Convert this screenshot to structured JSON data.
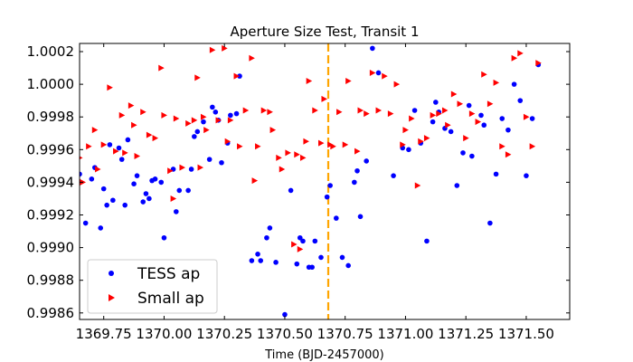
{
  "chart_data": {
    "type": "scatter",
    "title": "Aperture Size Test, Transit 1",
    "xlabel": "Time (BJD-2457000)",
    "ylabel": "",
    "xlim": [
      1369.65,
      1371.68
    ],
    "ylim": [
      0.99856,
      1.00025
    ],
    "grid": false,
    "legend_position": "bottom-left",
    "x_ticks": [
      1369.75,
      1370.0,
      1370.25,
      1370.5,
      1370.75,
      1371.0,
      1371.25,
      1371.5
    ],
    "x_tick_labels": [
      "1369.75",
      "1370.00",
      "1370.25",
      "1370.50",
      "1370.75",
      "1371.00",
      "1371.25",
      "1371.50"
    ],
    "y_ticks": [
      0.9986,
      0.9988,
      0.999,
      0.9992,
      0.9994,
      0.9996,
      0.9998,
      1.0,
      1.0002
    ],
    "y_tick_labels": [
      "0.9986",
      "0.9988",
      "0.9990",
      "0.9992",
      "0.9994",
      "0.9996",
      "0.9998",
      "1.0000",
      "1.0002"
    ],
    "vline": {
      "x": 1370.68,
      "color": "#ffa500",
      "style": "dashed"
    },
    "series": [
      {
        "name": "TESS ap",
        "color": "#0000ff",
        "marker": "circle",
        "points": [
          [
            1369.65,
            0.99945
          ],
          [
            1369.675,
            0.99915
          ],
          [
            1369.7,
            0.99942
          ],
          [
            1369.713,
            0.99949
          ],
          [
            1369.737,
            0.99912
          ],
          [
            1369.75,
            0.99936
          ],
          [
            1369.763,
            0.99926
          ],
          [
            1369.775,
            0.99963
          ],
          [
            1369.788,
            0.99929
          ],
          [
            1369.813,
            0.99961
          ],
          [
            1369.825,
            0.99954
          ],
          [
            1369.838,
            0.99926
          ],
          [
            1369.85,
            0.99966
          ],
          [
            1369.875,
            0.99939
          ],
          [
            1369.888,
            0.99944
          ],
          [
            1369.913,
            0.99928
          ],
          [
            1369.925,
            0.99933
          ],
          [
            1369.938,
            0.9993
          ],
          [
            1369.95,
            0.99941
          ],
          [
            1369.963,
            0.99942
          ],
          [
            1369.988,
            0.9994
          ],
          [
            1370.0,
            0.99906
          ],
          [
            1370.038,
            0.99948
          ],
          [
            1370.05,
            0.99922
          ],
          [
            1370.063,
            0.99935
          ],
          [
            1370.1,
            0.99935
          ],
          [
            1370.113,
            0.99948
          ],
          [
            1370.125,
            0.99968
          ],
          [
            1370.138,
            0.99971
          ],
          [
            1370.163,
            0.99977
          ],
          [
            1370.188,
            0.99954
          ],
          [
            1370.2,
            0.99986
          ],
          [
            1370.213,
            0.99983
          ],
          [
            1370.225,
            0.99978
          ],
          [
            1370.238,
            0.99952
          ],
          [
            1370.263,
            0.99964
          ],
          [
            1370.275,
            0.99981
          ],
          [
            1370.3,
            0.99982
          ],
          [
            1370.313,
            1.00005
          ],
          [
            1370.363,
            0.99892
          ],
          [
            1370.388,
            0.99896
          ],
          [
            1370.4,
            0.99892
          ],
          [
            1370.425,
            0.99906
          ],
          [
            1370.438,
            0.99912
          ],
          [
            1370.463,
            0.99891
          ],
          [
            1370.5,
            0.99859
          ],
          [
            1370.525,
            0.99935
          ],
          [
            1370.55,
            0.9989
          ],
          [
            1370.563,
            0.99906
          ],
          [
            1370.575,
            0.99904
          ],
          [
            1370.6,
            0.99888
          ],
          [
            1370.613,
            0.99888
          ],
          [
            1370.625,
            0.99904
          ],
          [
            1370.65,
            0.99894
          ],
          [
            1370.675,
            0.99931
          ],
          [
            1370.688,
            0.99938
          ],
          [
            1370.713,
            0.99918
          ],
          [
            1370.738,
            0.99894
          ],
          [
            1370.763,
            0.99889
          ],
          [
            1370.788,
            0.9994
          ],
          [
            1370.8,
            0.99947
          ],
          [
            1370.813,
            0.99919
          ],
          [
            1370.838,
            0.99953
          ],
          [
            1370.863,
            1.00022
          ],
          [
            1370.888,
            1.00007
          ],
          [
            1370.95,
            0.99944
          ],
          [
            1370.988,
            0.99961
          ],
          [
            1371.013,
            0.9996
          ],
          [
            1371.038,
            0.99984
          ],
          [
            1371.063,
            0.99964
          ],
          [
            1371.088,
            0.99904
          ],
          [
            1371.113,
            0.99977
          ],
          [
            1371.125,
            0.99989
          ],
          [
            1371.138,
            0.99983
          ],
          [
            1371.163,
            0.99973
          ],
          [
            1371.188,
            0.99971
          ],
          [
            1371.213,
            0.99938
          ],
          [
            1371.238,
            0.99958
          ],
          [
            1371.263,
            0.99987
          ],
          [
            1371.275,
            0.99956
          ],
          [
            1371.313,
            0.99981
          ],
          [
            1371.325,
            0.99975
          ],
          [
            1371.35,
            0.99915
          ],
          [
            1371.375,
            0.99945
          ],
          [
            1371.4,
            0.99979
          ],
          [
            1371.425,
            0.99972
          ],
          [
            1371.45,
            1.0
          ],
          [
            1371.475,
            0.9999
          ],
          [
            1371.5,
            0.99944
          ],
          [
            1371.525,
            0.99979
          ],
          [
            1371.55,
            1.00012
          ]
        ]
      },
      {
        "name": "Small ap",
        "color": "#ff0000",
        "marker": "triangle-right",
        "points": [
          [
            1369.65,
            0.99955
          ],
          [
            1369.663,
            0.9994
          ],
          [
            1369.688,
            0.99962
          ],
          [
            1369.713,
            0.99972
          ],
          [
            1369.725,
            0.99948
          ],
          [
            1369.75,
            0.99963
          ],
          [
            1369.775,
            0.99998
          ],
          [
            1369.8,
            0.99959
          ],
          [
            1369.825,
            0.99981
          ],
          [
            1369.838,
            0.99958
          ],
          [
            1369.863,
            0.99987
          ],
          [
            1369.875,
            0.99975
          ],
          [
            1369.888,
            0.99956
          ],
          [
            1369.913,
            0.99983
          ],
          [
            1369.938,
            0.99969
          ],
          [
            1369.963,
            0.99967
          ],
          [
            1369.988,
            1.0001
          ],
          [
            1370.0,
            0.99981
          ],
          [
            1370.025,
            0.99947
          ],
          [
            1370.038,
            0.9993
          ],
          [
            1370.05,
            0.99979
          ],
          [
            1370.075,
            0.99949
          ],
          [
            1370.1,
            0.99976
          ],
          [
            1370.125,
            0.99978
          ],
          [
            1370.138,
            1.00004
          ],
          [
            1370.15,
            0.99949
          ],
          [
            1370.163,
            0.9998
          ],
          [
            1370.175,
            0.99972
          ],
          [
            1370.2,
            1.00021
          ],
          [
            1370.225,
            0.99978
          ],
          [
            1370.25,
            1.00022
          ],
          [
            1370.263,
            0.99965
          ],
          [
            1370.275,
            0.99978
          ],
          [
            1370.3,
            1.00005
          ],
          [
            1370.313,
            0.99962
          ],
          [
            1370.338,
            0.99984
          ],
          [
            1370.363,
            1.00016
          ],
          [
            1370.375,
            0.99941
          ],
          [
            1370.388,
            0.99962
          ],
          [
            1370.413,
            0.99984
          ],
          [
            1370.438,
            0.99983
          ],
          [
            1370.45,
            0.99972
          ],
          [
            1370.475,
            0.99955
          ],
          [
            1370.488,
            0.99948
          ],
          [
            1370.513,
            0.99958
          ],
          [
            1370.538,
            0.99902
          ],
          [
            1370.55,
            0.99957
          ],
          [
            1370.563,
            0.99899
          ],
          [
            1370.575,
            0.99955
          ],
          [
            1370.588,
            0.99965
          ],
          [
            1370.6,
            1.00002
          ],
          [
            1370.625,
            0.99984
          ],
          [
            1370.65,
            0.99964
          ],
          [
            1370.663,
            0.99991
          ],
          [
            1370.688,
            0.99963
          ],
          [
            1370.7,
            0.99962
          ],
          [
            1370.725,
            0.99983
          ],
          [
            1370.75,
            0.99963
          ],
          [
            1370.763,
            1.00002
          ],
          [
            1370.8,
            0.99959
          ],
          [
            1370.813,
            0.99984
          ],
          [
            1370.838,
            0.99982
          ],
          [
            1370.863,
            1.00007
          ],
          [
            1370.888,
            0.99984
          ],
          [
            1370.913,
            1.00005
          ],
          [
            1370.938,
            0.99982
          ],
          [
            1370.963,
            1.0
          ],
          [
            1370.988,
            0.99963
          ],
          [
            1371.0,
            0.99972
          ],
          [
            1371.025,
            0.99979
          ],
          [
            1371.05,
            0.99938
          ],
          [
            1371.063,
            0.99965
          ],
          [
            1371.088,
            0.99967
          ],
          [
            1371.113,
            0.99981
          ],
          [
            1371.138,
            0.99982
          ],
          [
            1371.163,
            0.99984
          ],
          [
            1371.175,
            0.99975
          ],
          [
            1371.2,
            0.99994
          ],
          [
            1371.225,
            0.99988
          ],
          [
            1371.25,
            0.99967
          ],
          [
            1371.275,
            0.99982
          ],
          [
            1371.3,
            0.99977
          ],
          [
            1371.325,
            1.00006
          ],
          [
            1371.35,
            0.99988
          ],
          [
            1371.375,
            1.00001
          ],
          [
            1371.4,
            0.99962
          ],
          [
            1371.425,
            0.99957
          ],
          [
            1371.45,
            1.00016
          ],
          [
            1371.475,
            1.00019
          ],
          [
            1371.5,
            0.9998
          ],
          [
            1371.525,
            0.99962
          ],
          [
            1371.55,
            1.00013
          ]
        ]
      }
    ]
  }
}
